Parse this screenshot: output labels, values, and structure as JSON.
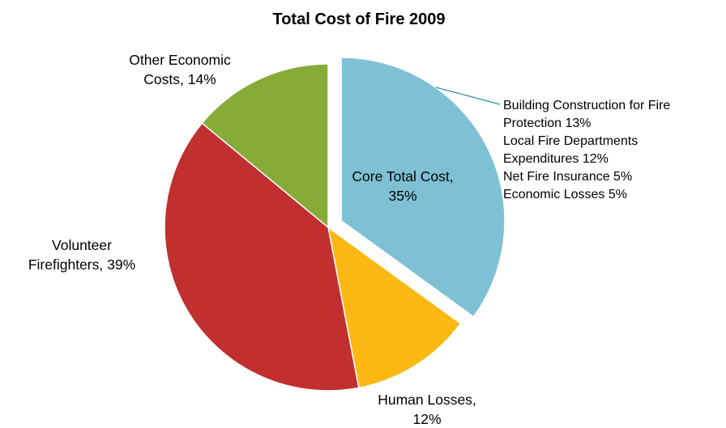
{
  "chart_data": {
    "type": "pie",
    "title": "Total Cost of Fire 2009",
    "slices": [
      {
        "label": "Core Total Cost",
        "value": 35,
        "color": "#7fc1d4",
        "exploded": true,
        "label_lines": [
          "Core Total Cost,",
          "35%"
        ]
      },
      {
        "label": "Human Losses",
        "value": 12,
        "color": "#fdb813",
        "exploded": false,
        "label_lines": [
          "Human Losses,",
          "12%"
        ]
      },
      {
        "label": "Volunteer Firefighters",
        "value": 39,
        "color": "#c22f2f",
        "exploded": false,
        "label_lines": [
          "Volunteer",
          "Firefighters, 39%"
        ]
      },
      {
        "label": "Other Economic Costs",
        "value": 14,
        "color": "#87ab37",
        "exploded": false,
        "label_lines": [
          "Other Economic",
          "Costs, 14%"
        ]
      }
    ],
    "annotation": {
      "lines": [
        "Building Construction for Fire",
        "Protection 13%",
        "Local Fire Departments",
        "Expenditures 12%",
        "Net Fire Insurance 5%",
        "Economic Losses 5%"
      ],
      "points_to": "Core Total Cost",
      "line_color": "#3a8ea6"
    },
    "legend": "none"
  }
}
